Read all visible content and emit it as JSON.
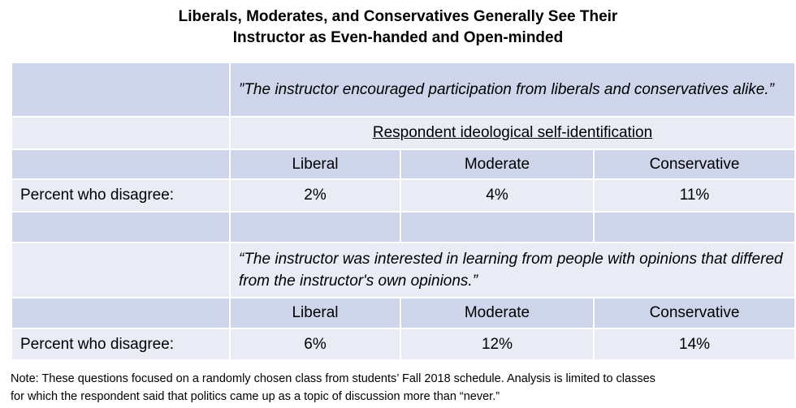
{
  "title_line1": "Liberals, Moderates, and Conservatives Generally See Their",
  "title_line2": "Instructor as Even-handed and Open-minded",
  "section1": {
    "quote": "”The instructor encouraged participation from liberals and conservatives alike.”",
    "subheader": "Respondent ideological self-identification",
    "columns": [
      "Liberal",
      "Moderate",
      "Conservative"
    ],
    "row_label": "Percent who disagree:",
    "values": [
      "2%",
      "4%",
      "11%"
    ]
  },
  "section2": {
    "quote": "“The instructor was interested in learning from people with opinions that differed from the instructor's own opinions.”",
    "columns": [
      "Liberal",
      "Moderate",
      "Conservative"
    ],
    "row_label": "Percent who disagree:",
    "values": [
      "6%",
      "12%",
      "14%"
    ]
  },
  "note_line1": "Note: These questions focused on a randomly chosen class from students’ Fall 2018 schedule. Analysis is limited to classes",
  "note_line2": "for which the respondent said that politics came up as a topic of discussion more than “never.”"
}
